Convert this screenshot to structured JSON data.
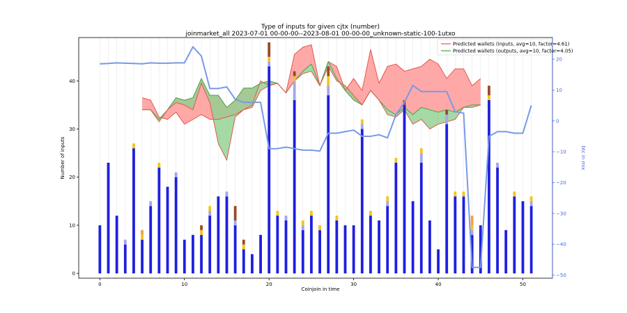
{
  "chart_data": {
    "type": "bar",
    "title": "Type of inputs for given cjtx (number)",
    "subtitle": "joinmarket_all 2023-07-01 00-00-00--2023-08-01 00-00-00_unknown-static-100-1utxo",
    "xlabel": "Coinjoin in time",
    "ylabel": "Number of inputs",
    "ylabel_right": "btc in mix",
    "xlim": [
      -2.5,
      53.5
    ],
    "ylim": [
      -1,
      49
    ],
    "ylim_right": [
      -51,
      27
    ],
    "x_ticks": [
      0,
      10,
      20,
      30,
      40,
      50
    ],
    "y_ticks": [
      0,
      10,
      20,
      30,
      40
    ],
    "y_ticks_right": [
      -50,
      -40,
      -30,
      -20,
      -10,
      0,
      10,
      20
    ],
    "grid": "vertical",
    "legend_position": "top-right",
    "colors": {
      "bar_main": "#1f1fe0",
      "bar_light": "#a6a6e8",
      "bar_yellow": "#f5c518",
      "bar_orange": "#f5a040",
      "bar_brown": "#9a4a2a",
      "inputs_fill": "#ff9999",
      "inputs_line": "#e05a4a",
      "outputs_fill": "#8fd08f",
      "outputs_line": "#4aa04a",
      "btc_line": "#7799e8",
      "right_axis": "#4466dd"
    },
    "bars": {
      "x": [
        0,
        1,
        2,
        3,
        4,
        5,
        6,
        7,
        8,
        9,
        10,
        11,
        12,
        13,
        14,
        15,
        16,
        17,
        18,
        19,
        20,
        21,
        22,
        23,
        24,
        25,
        26,
        27,
        28,
        29,
        30,
        31,
        32,
        33,
        34,
        35,
        36,
        37,
        38,
        39,
        40,
        41,
        42,
        43,
        44,
        45,
        46,
        47,
        48,
        49,
        50,
        51
      ],
      "main": [
        10,
        23,
        12,
        6,
        26,
        7,
        14,
        22,
        18,
        20,
        7,
        8,
        8,
        12,
        16,
        16,
        10,
        5,
        4,
        8,
        43,
        12,
        11,
        36,
        9,
        12,
        9,
        37,
        11,
        10,
        10,
        30,
        12,
        11,
        14,
        23,
        35,
        15,
        23,
        11,
        5,
        31,
        16,
        16,
        8,
        10,
        36,
        22,
        9,
        16,
        15,
        14
      ],
      "light": [
        0,
        0,
        0,
        1,
        0,
        0,
        1,
        0,
        0,
        1,
        0,
        0,
        0,
        1,
        0,
        1,
        1,
        0,
        0,
        0,
        1,
        0,
        1,
        4,
        1,
        0,
        0,
        2,
        0,
        0,
        0,
        1,
        0,
        0,
        1,
        0,
        0,
        0,
        2,
        0,
        0,
        2,
        0,
        0,
        1,
        0,
        0,
        1,
        0,
        0,
        0,
        1
      ],
      "yellow": [
        0,
        0,
        0,
        0,
        1,
        1,
        0,
        1,
        0,
        0,
        0,
        0,
        1,
        1,
        0,
        0,
        0,
        1,
        0,
        0,
        1,
        1,
        0,
        1,
        1,
        1,
        1,
        2,
        1,
        0,
        0,
        1,
        1,
        0,
        1,
        1,
        0,
        0,
        1,
        0,
        0,
        0,
        1,
        1,
        1,
        0,
        1,
        0,
        0,
        1,
        0,
        1
      ],
      "orange": [
        0,
        0,
        0,
        0,
        0,
        1,
        0,
        0,
        0,
        0,
        0,
        0,
        0,
        0,
        0,
        0,
        0,
        0,
        0,
        0,
        0,
        0,
        0,
        0,
        0,
        0,
        0,
        0,
        0,
        0,
        0,
        0,
        0,
        0,
        0,
        0,
        0,
        0,
        0,
        0,
        0,
        0,
        0,
        0,
        2,
        0,
        0,
        0,
        0,
        0,
        0,
        0
      ],
      "brown": [
        0,
        0,
        0,
        0,
        0,
        0,
        0,
        0,
        0,
        0,
        0,
        0,
        1,
        0,
        0,
        0,
        3,
        1,
        0,
        0,
        3,
        0,
        0,
        1,
        0,
        0,
        0,
        2,
        0,
        0,
        0,
        0,
        0,
        0,
        0,
        0,
        1,
        0,
        0,
        0,
        0,
        1,
        0,
        0,
        0,
        0,
        2,
        0,
        0,
        0,
        0,
        0
      ]
    },
    "series": [
      {
        "name": "Predicted wallets (inputs, avg=10, factor=4.61)",
        "x": [
          5,
          6,
          7,
          8,
          9,
          10,
          11,
          12,
          13,
          14,
          15,
          16,
          17,
          18,
          19,
          20,
          21,
          22,
          23,
          24,
          25,
          26,
          27,
          28,
          29,
          30,
          31,
          32,
          33,
          34,
          35,
          36,
          37,
          38,
          39,
          40,
          41,
          42,
          43,
          44,
          45
        ],
        "values": [
          36.5,
          36,
          32.5,
          32,
          33.5,
          31,
          32,
          33,
          32,
          32,
          32.5,
          33,
          34,
          35,
          40,
          39,
          39.5,
          37.5,
          45.5,
          47,
          47.5,
          39,
          44,
          43,
          38,
          40.5,
          38,
          46.5,
          39.5,
          43,
          43.5,
          42,
          42.5,
          43,
          44.5,
          43.5,
          40.5,
          42.5,
          42.5,
          39,
          40.5
        ]
      },
      {
        "name": "Predicted wallets (outputs, avg=10, factor=4.05)",
        "x": [
          5,
          6,
          7,
          8,
          9,
          10,
          11,
          12,
          13,
          14,
          15,
          16,
          17,
          18,
          19,
          20,
          21,
          22,
          23,
          24,
          25,
          26,
          27,
          28,
          29,
          30,
          31,
          32,
          33,
          34,
          35,
          36,
          37,
          38,
          39,
          40,
          41,
          42,
          43,
          44,
          45
        ],
        "lower": [
          34,
          34,
          31.5,
          34,
          35.5,
          35,
          34,
          39.5,
          35.5,
          27,
          23.5,
          32.5,
          34,
          34.5,
          38,
          39,
          39.5,
          37.5,
          40,
          41.5,
          42,
          39,
          43,
          40,
          39,
          37,
          35,
          38,
          36,
          33,
          32.5,
          34,
          31,
          32,
          30,
          31,
          31.5,
          32,
          34.5,
          34.5,
          35
        ],
        "values": [
          34,
          34,
          32,
          34,
          36.5,
          36,
          36.5,
          40.5,
          37,
          37,
          34.5,
          36,
          38.5,
          38.5,
          39.5,
          40,
          39.5,
          37.5,
          40,
          42,
          43.5,
          39,
          44,
          40.5,
          38,
          36,
          35,
          38,
          36,
          34,
          33,
          34.5,
          33,
          34.5,
          34,
          33.5,
          34,
          33.5,
          34.5,
          35,
          35
        ]
      },
      {
        "name": "btc in mix",
        "axis": "right",
        "x": [
          0,
          1,
          2,
          3,
          4,
          5,
          6,
          7,
          8,
          9,
          10,
          11,
          12,
          13,
          14,
          15,
          16,
          17,
          18,
          19,
          20,
          21,
          22,
          23,
          24,
          25,
          26,
          27,
          28,
          29,
          30,
          31,
          32,
          33,
          34,
          35,
          36,
          37,
          38,
          39,
          40,
          41,
          42,
          43,
          44,
          45,
          46,
          47,
          48,
          49,
          50,
          51
        ],
        "values": [
          18.5,
          18.6,
          18.8,
          18.7,
          18.6,
          18.5,
          18.8,
          18.7,
          18.7,
          18.8,
          18.8,
          24,
          21,
          10.5,
          10.5,
          11,
          7,
          6,
          6,
          6,
          -9,
          -9,
          -8.5,
          -9,
          -9.5,
          -9.5,
          -9.8,
          -4,
          -4,
          -3.5,
          -3,
          -5,
          -5,
          -4.5,
          -5.5,
          2,
          6,
          11.5,
          9.5,
          9.5,
          9.5,
          9.5,
          3,
          2.5,
          -47.5,
          -47.5,
          -5,
          -3.5,
          -3.5,
          -4,
          -4,
          5
        ]
      }
    ]
  }
}
